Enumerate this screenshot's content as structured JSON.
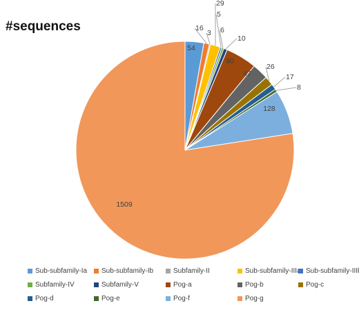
{
  "chart_data": {
    "type": "pie",
    "title": "#sequences",
    "legend_position": "bottom",
    "slices": [
      {
        "name": "Sub-subfamily-Ia",
        "value": 54,
        "label": "54",
        "color": "#5B9BD5"
      },
      {
        "name": "Sub-subfamily-Ib",
        "value": 16,
        "label": "16",
        "color": "#ED7D31"
      },
      {
        "name": "Subfamily-II",
        "value": 3,
        "label": "3",
        "color": "#A5A5A5"
      },
      {
        "name": "Sub-subfamily-IIIa",
        "value": 29,
        "label": "29",
        "color": "#FFC000"
      },
      {
        "name": "Sub-subfamily-IIIb",
        "value": 5,
        "label": "5",
        "color": "#4472C4"
      },
      {
        "name": "Subfamily-IV",
        "value": 6,
        "label": "6",
        "color": "#70AD47"
      },
      {
        "name": "Subfamily-V",
        "value": 10,
        "label": "10",
        "color": "#264478"
      },
      {
        "name": "Pog-a",
        "value": 90,
        "label": "90",
        "color": "#9E480E"
      },
      {
        "name": "Pog-b",
        "value": 47,
        "label": "47",
        "color": "#636363"
      },
      {
        "name": "Pog-c",
        "value": 26,
        "label": "26",
        "color": "#997300"
      },
      {
        "name": "Pog-d",
        "value": 17,
        "label": "17",
        "color": "#255E91"
      },
      {
        "name": "Pog-e",
        "value": 8,
        "label": "8",
        "color": "#43682B"
      },
      {
        "name": "Pog-f",
        "value": 128,
        "label": "128",
        "color": "#7CAFDD"
      },
      {
        "name": "Pog-g",
        "value": 1509,
        "label": "1509",
        "color": "#F1975A"
      }
    ]
  }
}
